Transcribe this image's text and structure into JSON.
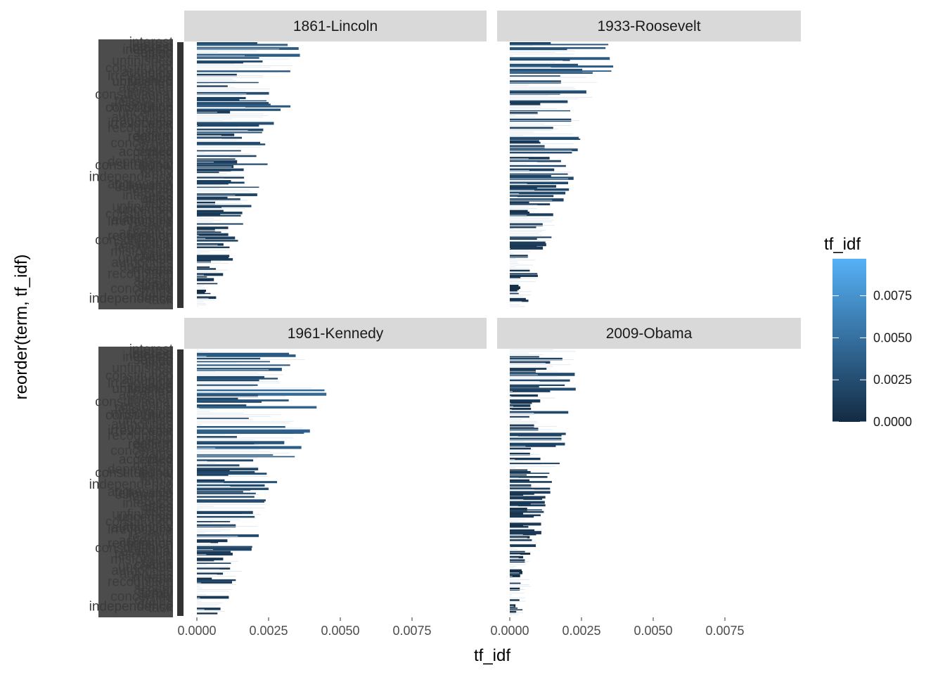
{
  "chart_data": {
    "type": "bar",
    "orientation": "horizontal",
    "facets": [
      "1861-Lincoln",
      "1933-Roosevelt",
      "1961-Kennedy",
      "2009-Obama"
    ],
    "facet_layout": "2x2",
    "xlabel": "tf_idf",
    "ylabel": "reorder(term, tf_idf)",
    "xlim": [
      0,
      0.0097
    ],
    "x_ticks": [
      "0.0000",
      "0.0025",
      "0.0050",
      "0.0075"
    ],
    "x_tick_values": [
      0,
      0.0025,
      0.005,
      0.0075
    ],
    "y_tick_labels_visible": [
      "interest",
      "settled",
      "interests",
      "union",
      "lines",
      "unfinished",
      "met",
      "constitution",
      "authority",
      "irrevocable",
      "resolve",
      "reaffirm",
      "accepted",
      "mission",
      "constitutional",
      "essential",
      "fellowship",
      "misfortune",
      "cities",
      "uncertain",
      "authorities",
      "agencies",
      "east",
      "recognition",
      "useful",
      "accept",
      "actual",
      "concerned",
      "chains",
      "duties",
      "task",
      "means",
      "depression",
      "fellow",
      "forms",
      "firmly",
      "independence",
      "pay",
      "aggression"
    ],
    "legend": {
      "title": "tf_idf",
      "ticks": [
        "0.0075",
        "0.0050",
        "0.0025",
        "0.0000"
      ],
      "tick_values": [
        0.0075,
        0.005,
        0.0025,
        0
      ],
      "low_color": "#132B43",
      "high_color": "#56B1F7",
      "max_value": 0.0097,
      "position": "right"
    },
    "series_max_tf_idf": {
      "1861-Lincoln": 0.0041,
      "1933-Roosevelt": 0.004,
      "1961-Kennedy": 0.0054,
      "2009-Obama": 0.0028
    },
    "grid": false,
    "colors": {
      "strip_background": "#d9d9d9",
      "label_block": "#333333",
      "tick_text": "#4d4d4d"
    }
  }
}
